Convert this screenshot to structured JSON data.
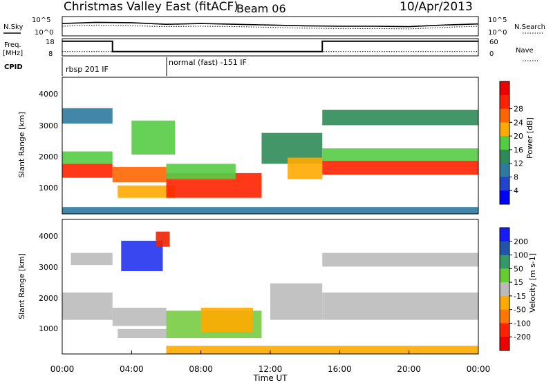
{
  "header": {
    "station": "Christmas Valley East (fitACF)",
    "beam": "Beam 06",
    "date": "10/Apr/2013"
  },
  "panels": {
    "nsky_label": "N.Sky",
    "nsearch_label": "N.Search",
    "noise_ticks_left": [
      "10^5",
      "10^0"
    ],
    "noise_ticks_right": [
      "10^5",
      "10^0"
    ],
    "freq_label_1": "Freq.",
    "freq_label_2": "[MHz]",
    "freq_ticks": [
      "18",
      "8"
    ],
    "nave_label": "Nave",
    "nave_ticks": [
      "60",
      "0"
    ],
    "cpid_label": "CPID",
    "cpid_segments": [
      {
        "label": "rbsp 201 IF",
        "start_h": 0
      },
      {
        "label": "normal (fast) -151 IF",
        "start_h": 6
      }
    ],
    "ylabel_power": "Slant Range [km]",
    "ylabel_velocity": "Slant Range [km]",
    "range_ticks": [
      "1000",
      "2000",
      "3000",
      "4000"
    ],
    "xlabel": "Time UT"
  },
  "chart_data": [
    {
      "type": "line",
      "name": "noise",
      "x_range_h": [
        0,
        24
      ],
      "series": [
        {
          "name": "N.Sky",
          "x": [
            0,
            2,
            4,
            6,
            8,
            10,
            12,
            14,
            16,
            18,
            20,
            22,
            24
          ],
          "values": [
            3.2,
            3.5,
            3.4,
            3.0,
            3.2,
            3.0,
            2.8,
            2.6,
            2.5,
            2.5,
            2.4,
            2.8,
            3.1
          ]
        },
        {
          "name": "N.Search",
          "x": [
            0,
            2,
            4,
            6,
            8,
            10,
            12,
            14,
            16,
            18,
            20,
            22,
            24
          ],
          "values": [
            2.5,
            2.8,
            2.6,
            2.4,
            2.5,
            2.4,
            2.2,
            2.0,
            1.9,
            1.9,
            1.8,
            2.2,
            2.5
          ]
        }
      ]
    },
    {
      "type": "line",
      "name": "frequency-nave",
      "x_range_h": [
        0,
        24
      ],
      "series": [
        {
          "name": "Freq.",
          "x": [
            0,
            2.9,
            2.9,
            15.0,
            15.0,
            24
          ],
          "values": [
            16.5,
            16.5,
            10.5,
            10.5,
            16.5,
            16.5
          ]
        },
        {
          "name": "Nave",
          "x": [
            0,
            24
          ],
          "values": [
            15,
            15
          ]
        }
      ],
      "ylim_freq": [
        8,
        18
      ],
      "ylim_nave": [
        0,
        60
      ]
    },
    {
      "type": "heatmap",
      "name": "power",
      "x_range_h": [
        0,
        24
      ],
      "ylim_km": [
        180,
        4600
      ],
      "colorbar": {
        "label": "Power [dB]",
        "ticks": [
          "4",
          "8",
          "12",
          "16",
          "20",
          "24",
          "28"
        ],
        "colors": [
          "#0000ff",
          "#2244cc",
          "#2e7aa0",
          "#2e8b57",
          "#55cc44",
          "#ffaa00",
          "#ff6600",
          "#ff2200",
          "#ee0000"
        ]
      },
      "bands": [
        {
          "t0": 0.0,
          "t1": 2.9,
          "r0": 1350,
          "r1": 1800,
          "level": 0.85
        },
        {
          "t0": 0.0,
          "t1": 2.9,
          "r0": 1800,
          "r1": 2200,
          "level": 0.45
        },
        {
          "t0": 0.0,
          "t1": 2.9,
          "r0": 3100,
          "r1": 3600,
          "level": 0.3
        },
        {
          "t0": 2.9,
          "t1": 6.0,
          "r0": 1200,
          "r1": 1700,
          "level": 0.8
        },
        {
          "t0": 3.2,
          "t1": 6.5,
          "r0": 700,
          "r1": 1100,
          "level": 0.6
        },
        {
          "t0": 4.0,
          "t1": 6.5,
          "r0": 2100,
          "r1": 3200,
          "level": 0.45
        },
        {
          "t0": 6.0,
          "t1": 11.5,
          "r0": 700,
          "r1": 1500,
          "level": 0.9
        },
        {
          "t0": 6.0,
          "t1": 10.0,
          "r0": 1300,
          "r1": 1800,
          "level": 0.55
        },
        {
          "t0": 11.5,
          "t1": 15.0,
          "r0": 1800,
          "r1": 2800,
          "level": 0.35
        },
        {
          "t0": 13.0,
          "t1": 15.0,
          "r0": 1300,
          "r1": 2000,
          "level": 0.65
        },
        {
          "t0": 15.0,
          "t1": 24.0,
          "r0": 1450,
          "r1": 1900,
          "level": 0.9
        },
        {
          "t0": 15.0,
          "t1": 24.0,
          "r0": 1900,
          "r1": 2300,
          "level": 0.55
        },
        {
          "t0": 15.0,
          "t1": 24.0,
          "r0": 3050,
          "r1": 3550,
          "level": 0.35
        },
        {
          "t0": 0.0,
          "t1": 24.0,
          "r0": 180,
          "r1": 400,
          "level": 0.2
        }
      ]
    },
    {
      "type": "heatmap",
      "name": "velocity",
      "x_range_h": [
        0,
        24
      ],
      "ylim_km": [
        180,
        4600
      ],
      "colorbar": {
        "label": "Velocity [m s-1]",
        "ticks": [
          "200",
          "100",
          "50",
          "15",
          "-15",
          "-50",
          "-100",
          "-200"
        ],
        "colors": [
          "#1a1aff",
          "#2255aa",
          "#339966",
          "#66cc33",
          "#bbbbbb",
          "#ffaa00",
          "#ff7700",
          "#ff2200",
          "#ee0000"
        ]
      },
      "bands": [
        {
          "t0": 0.0,
          "t1": 2.9,
          "r0": 1300,
          "r1": 2200,
          "color": "#bbbbbb"
        },
        {
          "t0": 0.5,
          "t1": 2.9,
          "r0": 3100,
          "r1": 3500,
          "color": "#bbbbbb"
        },
        {
          "t0": 2.9,
          "t1": 6.0,
          "r0": 1100,
          "r1": 1700,
          "color": "#bbbbbb"
        },
        {
          "t0": 3.2,
          "t1": 6.0,
          "r0": 700,
          "r1": 1000,
          "color": "#bbbbbb"
        },
        {
          "t0": 3.4,
          "t1": 5.8,
          "r0": 2900,
          "r1": 3900,
          "color": "#2233ee"
        },
        {
          "t0": 5.4,
          "t1": 6.2,
          "r0": 3700,
          "r1": 4200,
          "color": "#ee2200"
        },
        {
          "t0": 6.0,
          "t1": 11.5,
          "r0": 700,
          "r1": 1600,
          "color": "#77cc44"
        },
        {
          "t0": 8.0,
          "t1": 11.0,
          "r0": 900,
          "r1": 1700,
          "color": "#ffaa00"
        },
        {
          "t0": 12.0,
          "t1": 15.0,
          "r0": 1300,
          "r1": 2500,
          "color": "#bbbbbb"
        },
        {
          "t0": 15.0,
          "t1": 24.0,
          "r0": 1300,
          "r1": 2200,
          "color": "#bbbbbb"
        },
        {
          "t0": 15.0,
          "t1": 24.0,
          "r0": 3050,
          "r1": 3500,
          "color": "#bbbbbb"
        },
        {
          "t0": 6.0,
          "t1": 24.0,
          "r0": 180,
          "r1": 450,
          "color": "#ffaa00"
        }
      ]
    }
  ],
  "x_ticks": [
    "00:00",
    "04:00",
    "08:00",
    "12:00",
    "16:00",
    "20:00",
    "00:00"
  ]
}
